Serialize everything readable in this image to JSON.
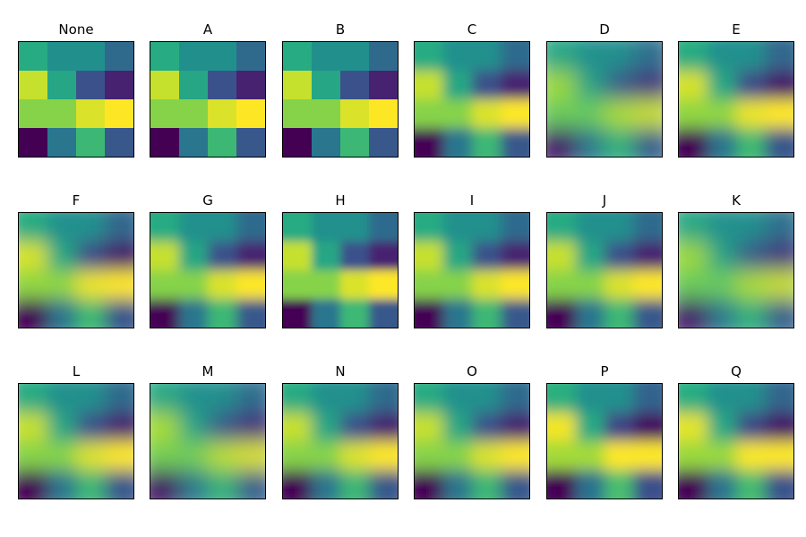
{
  "chart_data": {
    "type": "heatmap",
    "colormap": "viridis",
    "grid": false,
    "axes_ticks": false,
    "matrix": [
      [
        0.62,
        0.5,
        0.5,
        0.35
      ],
      [
        0.92,
        0.6,
        0.25,
        0.1
      ],
      [
        0.82,
        0.82,
        0.95,
        1.0
      ],
      [
        0.0,
        0.4,
        0.68,
        0.28
      ]
    ],
    "panels": [
      {
        "title": "None"
      },
      {
        "title": "A"
      },
      {
        "title": "B"
      },
      {
        "title": "C"
      },
      {
        "title": "D"
      },
      {
        "title": "E"
      },
      {
        "title": "F"
      },
      {
        "title": "G"
      },
      {
        "title": "H"
      },
      {
        "title": "I"
      },
      {
        "title": "J"
      },
      {
        "title": "K"
      },
      {
        "title": "L"
      },
      {
        "title": "M"
      },
      {
        "title": "N"
      },
      {
        "title": "O"
      },
      {
        "title": "P"
      },
      {
        "title": "Q"
      }
    ]
  }
}
